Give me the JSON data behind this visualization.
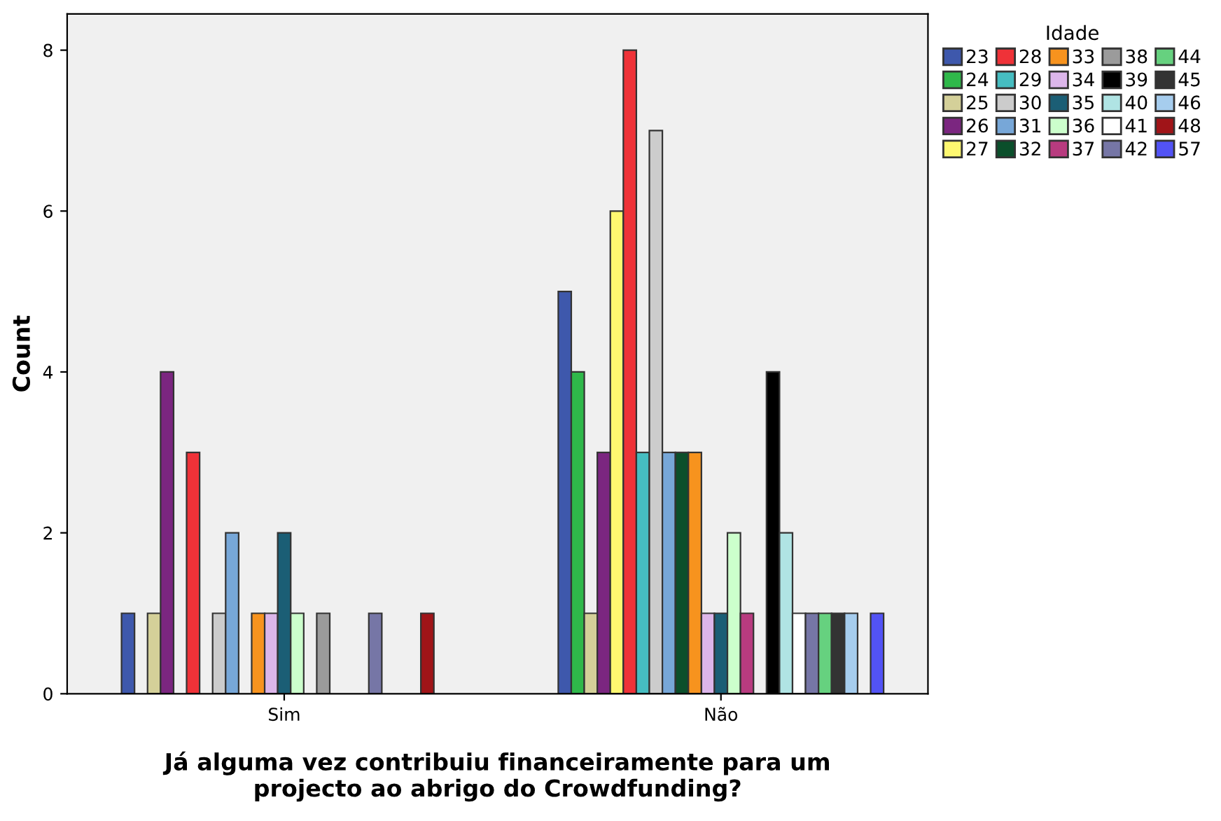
{
  "chart_data": {
    "type": "bar",
    "xlabel": "Já alguma vez contribuiu financeiramente para um\nprojecto ao abrigo do Crowdfunding?",
    "ylabel": "Count",
    "legend_title": "Idade",
    "legend": "right",
    "categories": [
      "Sim",
      "Não"
    ],
    "ylim": [
      0,
      8.45
    ],
    "yticks": [
      0,
      2,
      4,
      6,
      8
    ],
    "grid": false,
    "series": [
      {
        "name": "23",
        "color": "#3e58ac",
        "values": [
          1,
          5
        ]
      },
      {
        "name": "24",
        "color": "#2fb84a",
        "values": [
          null,
          4
        ]
      },
      {
        "name": "25",
        "color": "#d4d099",
        "values": [
          1,
          1
        ]
      },
      {
        "name": "26",
        "color": "#7b2680",
        "values": [
          4,
          3
        ]
      },
      {
        "name": "27",
        "color": "#fef870",
        "values": [
          null,
          6
        ]
      },
      {
        "name": "28",
        "color": "#ef3238",
        "values": [
          3,
          8
        ]
      },
      {
        "name": "29",
        "color": "#46bdc1",
        "values": [
          null,
          3
        ]
      },
      {
        "name": "30",
        "color": "#cccccc",
        "values": [
          1,
          7
        ]
      },
      {
        "name": "31",
        "color": "#77a7d8",
        "values": [
          2,
          3
        ]
      },
      {
        "name": "32",
        "color": "#0b4f2b",
        "values": [
          null,
          3
        ]
      },
      {
        "name": "33",
        "color": "#f7931e",
        "values": [
          1,
          3
        ]
      },
      {
        "name": "34",
        "color": "#dcb6ea",
        "values": [
          1,
          1
        ]
      },
      {
        "name": "35",
        "color": "#1b5e75",
        "values": [
          2,
          1
        ]
      },
      {
        "name": "36",
        "color": "#ccffcc",
        "values": [
          1,
          2
        ]
      },
      {
        "name": "37",
        "color": "#b83b7f",
        "values": [
          null,
          1
        ]
      },
      {
        "name": "38",
        "color": "#9b9b9b",
        "values": [
          1,
          null
        ]
      },
      {
        "name": "39",
        "color": "#000000",
        "values": [
          null,
          4
        ]
      },
      {
        "name": "40",
        "color": "#b0e4e4",
        "values": [
          null,
          2
        ]
      },
      {
        "name": "41",
        "color": "#ffffff",
        "values": [
          null,
          1
        ]
      },
      {
        "name": "42",
        "color": "#7676a6",
        "values": [
          1,
          1
        ]
      },
      {
        "name": "44",
        "color": "#66d17f",
        "values": [
          null,
          1
        ]
      },
      {
        "name": "45",
        "color": "#333333",
        "values": [
          null,
          1
        ]
      },
      {
        "name": "46",
        "color": "#a6cdee",
        "values": [
          null,
          1
        ]
      },
      {
        "name": "48",
        "color": "#a01418",
        "values": [
          1,
          null
        ]
      },
      {
        "name": "57",
        "color": "#5253f5",
        "values": [
          null,
          1
        ]
      }
    ]
  }
}
